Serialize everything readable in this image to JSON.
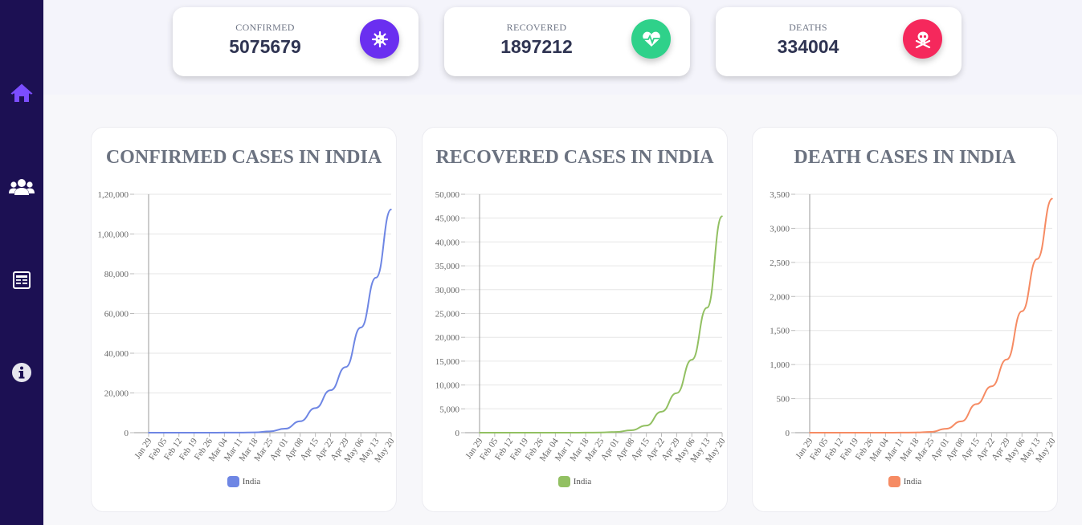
{
  "sidebar": {
    "items": [
      {
        "name": "home-icon",
        "active": true
      },
      {
        "name": "users-icon",
        "active": false
      },
      {
        "name": "newspaper-icon",
        "active": false
      },
      {
        "name": "info-icon",
        "active": false
      }
    ]
  },
  "stats": [
    {
      "label": "CONFIRMED",
      "value": "5075679",
      "icon": "virus-icon",
      "color": "#6a2ff0"
    },
    {
      "label": "RECOVERED",
      "value": "1897212",
      "icon": "heartbeat-icon",
      "color": "#2fd18a"
    },
    {
      "label": "DEATHS",
      "value": "334004",
      "icon": "skull-crossbones-icon",
      "color": "#f5285c"
    }
  ],
  "x_ticks": [
    "Jan 29",
    "Feb 05",
    "Feb 12",
    "Feb 19",
    "Feb 26",
    "Mar 04",
    "Mar 11",
    "Mar 18",
    "Mar 25",
    "Apr 01",
    "Apr 08",
    "Apr 15",
    "Apr 22",
    "Apr 29",
    "May 06",
    "May 13",
    "May 20"
  ],
  "chart_data": [
    {
      "type": "line",
      "title": "CONFIRMED CASES IN INDIA",
      "ylim": [
        0,
        120000
      ],
      "y_ticks": [
        "0",
        "20,000",
        "40,000",
        "60,000",
        "80,000",
        "1,00,000",
        "1,20,000"
      ],
      "legend": "India",
      "color": "#6e86e4",
      "series": [
        {
          "name": "India",
          "values": [
            1,
            3,
            3,
            3,
            3,
            28,
            62,
            151,
            657,
            1998,
            5734,
            12380,
            21370,
            33050,
            52952,
            78055,
            112359
          ]
        }
      ]
    },
    {
      "type": "line",
      "title": "RECOVERED CASES IN INDIA",
      "ylim": [
        0,
        50000
      ],
      "y_ticks": [
        "0",
        "5,000",
        "10,000",
        "15,000",
        "20,000",
        "25,000",
        "30,000",
        "35,000",
        "40,000",
        "45,000",
        "50,000"
      ],
      "legend": "India",
      "color": "#92c062",
      "series": [
        {
          "name": "India",
          "values": [
            0,
            0,
            0,
            3,
            3,
            3,
            4,
            14,
            43,
            150,
            500,
            1500,
            4400,
            8300,
            15300,
            26200,
            45400
          ]
        }
      ]
    },
    {
      "type": "line",
      "title": "DEATH CASES IN INDIA",
      "ylim": [
        0,
        3500
      ],
      "y_ticks": [
        "0",
        "500",
        "1,000",
        "1,500",
        "2,000",
        "2,500",
        "3,000",
        "3,500"
      ],
      "legend": "India",
      "color": "#f68b63",
      "series": [
        {
          "name": "India",
          "values": [
            0,
            0,
            0,
            0,
            0,
            0,
            1,
            3,
            12,
            58,
            166,
            420,
            681,
            1075,
            1783,
            2549,
            3435
          ]
        }
      ]
    }
  ]
}
